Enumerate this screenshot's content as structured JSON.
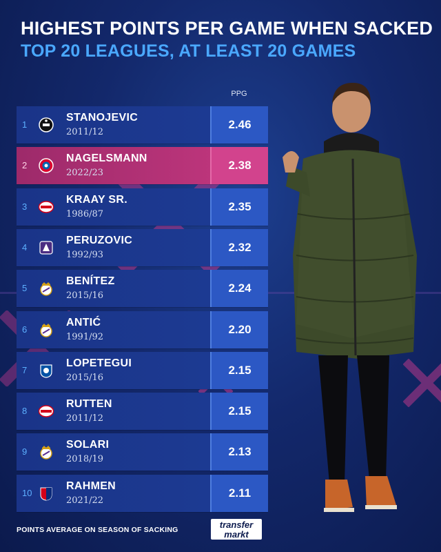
{
  "title": "HIGHEST POINTS PER GAME WHEN SACKED",
  "subtitle": "TOP 20 LEAGUES, AT LEAST 20 GAMES",
  "column_header": "PPG",
  "footnote": "POINTS AVERAGE ON SEASON OF SACKING",
  "logo": {
    "line1": "transfer",
    "line2": "markt"
  },
  "colors": {
    "background": "#13286b",
    "row": "#1d3c95",
    "ppg_box": "#2c58c4",
    "highlight_row": "#c53880",
    "highlight_ppg": "#d2438d",
    "subtitle": "#4aa8ff",
    "cross": "#b8388a"
  },
  "chart_data": {
    "type": "table",
    "title": "HIGHEST POINTS PER GAME WHEN SACKED",
    "subtitle": "TOP 20 LEAGUES, AT LEAST 20 GAMES",
    "columns": [
      "",
      "",
      "PPG"
    ],
    "rows": [
      {
        "rank": "1",
        "name": "STANOJEVIC",
        "season": "2011/12",
        "ppg": "2.46",
        "crest": "partizan-crest-icon",
        "highlight": false
      },
      {
        "rank": "2",
        "name": "NAGELSMANN",
        "season": "2022/23",
        "ppg": "2.38",
        "crest": "bayern-crest-icon",
        "highlight": true
      },
      {
        "rank": "3",
        "name": "KRAAY SR.",
        "season": "1986/87",
        "ppg": "2.35",
        "crest": "psv-crest-icon",
        "highlight": false
      },
      {
        "rank": "4",
        "name": "PERUZOVIC",
        "season": "1992/93",
        "ppg": "2.32",
        "crest": "anderlecht-crest-icon",
        "highlight": false
      },
      {
        "rank": "5",
        "name": "BENÍTEZ",
        "season": "2015/16",
        "ppg": "2.24",
        "crest": "real-madrid-crest-icon",
        "highlight": false
      },
      {
        "rank": "6",
        "name": "ANTIĆ",
        "season": "1991/92",
        "ppg": "2.20",
        "crest": "real-madrid-crest-icon",
        "highlight": false
      },
      {
        "rank": "7",
        "name": "LOPETEGUI",
        "season": "2015/16",
        "ppg": "2.15",
        "crest": "porto-crest-icon",
        "highlight": false
      },
      {
        "rank": "8",
        "name": "RUTTEN",
        "season": "2011/12",
        "ppg": "2.15",
        "crest": "psv-crest-icon",
        "highlight": false
      },
      {
        "rank": "9",
        "name": "SOLARI",
        "season": "2018/19",
        "ppg": "2.13",
        "crest": "real-madrid-crest-icon",
        "highlight": false
      },
      {
        "rank": "10",
        "name": "RAHMEN",
        "season": "2021/22",
        "ppg": "2.11",
        "crest": "basel-crest-icon",
        "highlight": false
      }
    ]
  }
}
